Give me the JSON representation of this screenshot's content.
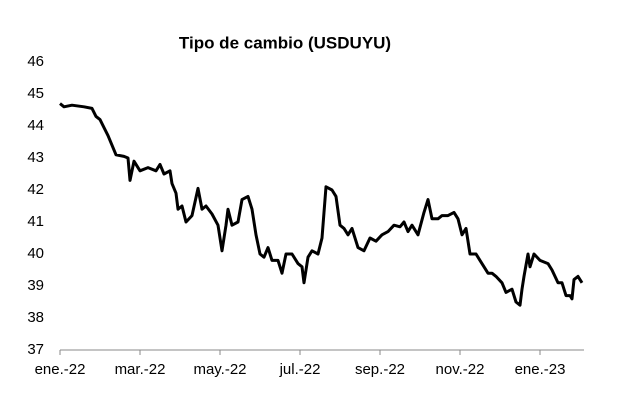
{
  "chart_data": {
    "type": "line",
    "title": "Tipo de cambio (USDUYU)",
    "x": [
      0,
      0.1,
      0.3,
      0.6,
      0.8,
      0.9,
      1.0,
      1.2,
      1.4,
      1.6,
      1.7,
      1.75,
      1.85,
      2.0,
      2.2,
      2.4,
      2.5,
      2.6,
      2.75,
      2.8,
      2.9,
      2.95,
      3.05,
      3.15,
      3.3,
      3.45,
      3.55,
      3.65,
      3.8,
      3.95,
      4.05,
      4.15,
      4.2,
      4.3,
      4.45,
      4.55,
      4.7,
      4.8,
      4.9,
      5.0,
      5.1,
      5.2,
      5.3,
      5.45,
      5.55,
      5.65,
      5.8,
      5.95,
      6.05,
      6.1,
      6.2,
      6.3,
      6.45,
      6.55,
      6.65,
      6.8,
      6.9,
      7.0,
      7.1,
      7.2,
      7.3,
      7.45,
      7.6,
      7.75,
      7.9,
      8.05,
      8.2,
      8.35,
      8.5,
      8.6,
      8.7,
      8.8,
      8.95,
      9.1,
      9.2,
      9.3,
      9.45,
      9.55,
      9.7,
      9.85,
      9.95,
      10.05,
      10.15,
      10.25,
      10.4,
      10.5,
      10.6,
      10.7,
      10.8,
      10.9,
      11.05,
      11.15,
      11.3,
      11.4,
      11.5,
      11.55,
      11.6,
      11.7,
      11.75,
      11.85,
      12.0,
      12.2,
      12.3,
      12.45,
      12.55,
      12.65,
      12.75,
      12.8,
      12.85,
      12.95,
      13.05
    ],
    "series": [
      {
        "name": "USDUYU",
        "color": "#000000",
        "values": [
          44.7,
          44.6,
          44.65,
          44.6,
          44.55,
          44.3,
          44.2,
          43.7,
          43.1,
          43.05,
          43.0,
          42.3,
          42.9,
          42.6,
          42.7,
          42.6,
          42.8,
          42.5,
          42.6,
          42.2,
          41.9,
          41.4,
          41.5,
          41.0,
          41.2,
          42.05,
          41.4,
          41.5,
          41.25,
          40.9,
          40.1,
          40.9,
          41.4,
          40.9,
          41.0,
          41.7,
          41.8,
          41.4,
          40.6,
          40.0,
          39.9,
          40.2,
          39.8,
          39.8,
          39.4,
          40.0,
          40.0,
          39.7,
          39.6,
          39.1,
          39.9,
          40.1,
          40.0,
          40.5,
          42.1,
          42.0,
          41.8,
          40.9,
          40.8,
          40.6,
          40.8,
          40.2,
          40.1,
          40.5,
          40.4,
          40.6,
          40.7,
          40.9,
          40.85,
          41.0,
          40.7,
          40.9,
          40.6,
          41.3,
          41.7,
          41.1,
          41.1,
          41.2,
          41.2,
          41.3,
          41.1,
          40.6,
          40.8,
          40.0,
          40.0,
          39.8,
          39.6,
          39.4,
          39.4,
          39.3,
          39.1,
          38.8,
          38.9,
          38.5,
          38.4,
          38.9,
          39.3,
          40.0,
          39.6,
          40.0,
          39.8,
          39.7,
          39.5,
          39.1,
          39.1,
          38.7,
          38.7,
          38.6,
          39.2,
          39.3,
          39.1
        ]
      }
    ],
    "xlim": [
      0,
      13.1
    ],
    "xticks": [
      {
        "value": 0,
        "label": "ene.-22"
      },
      {
        "value": 2,
        "label": "mar.-22"
      },
      {
        "value": 4,
        "label": "may.-22"
      },
      {
        "value": 6,
        "label": "jul.-22"
      },
      {
        "value": 8,
        "label": "sep.-22"
      },
      {
        "value": 10,
        "label": "nov.-22"
      },
      {
        "value": 12,
        "label": "ene.-23"
      }
    ],
    "ylim": [
      37,
      46
    ],
    "yticks": [
      37,
      38,
      39,
      40,
      41,
      42,
      43,
      44,
      45,
      46
    ]
  }
}
